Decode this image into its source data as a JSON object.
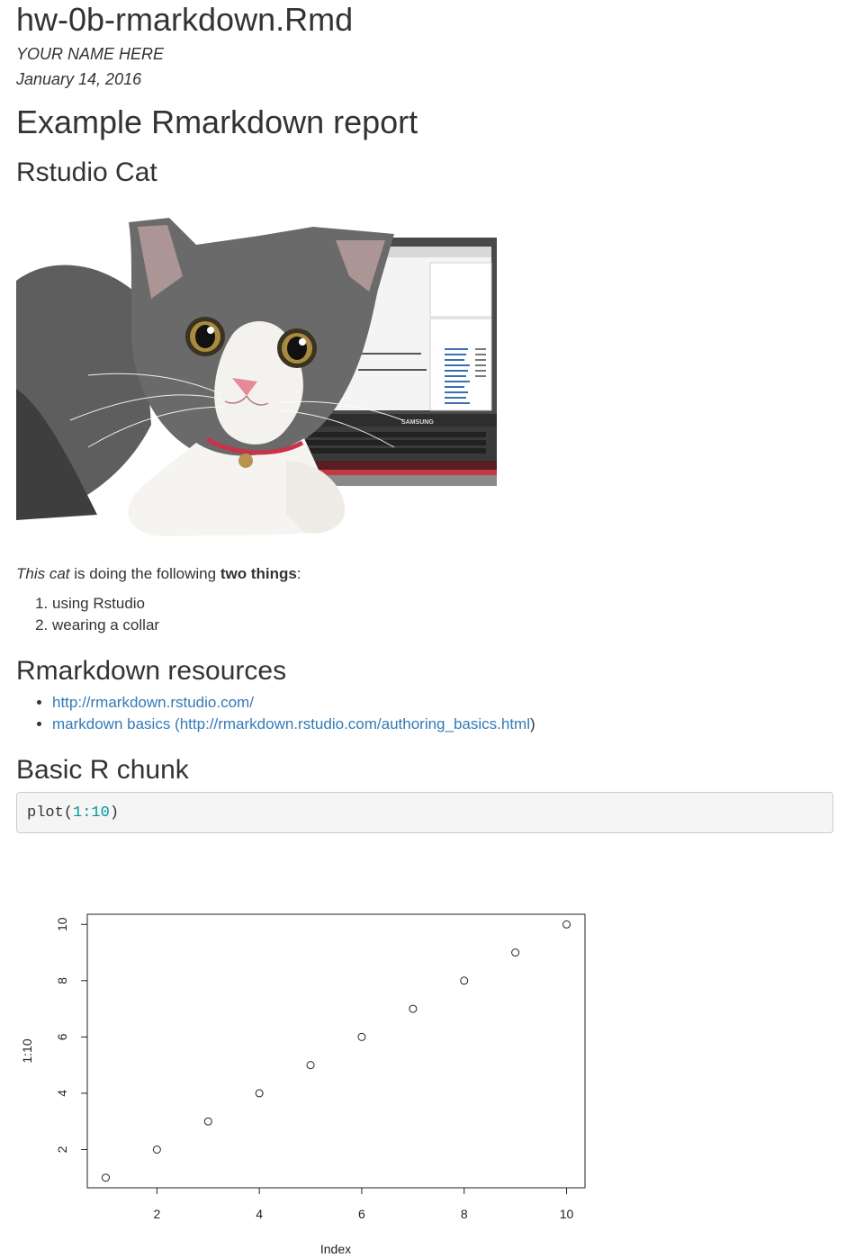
{
  "header": {
    "title": "hw-0b-rmarkdown.Rmd",
    "author": "YOUR NAME HERE",
    "date": "January 14, 2016"
  },
  "sections": {
    "main_heading": "Example Rmarkdown report",
    "cat_heading": "Rstudio Cat",
    "resources_heading": "Rmarkdown resources",
    "chunk_heading": "Basic R chunk"
  },
  "figure": {
    "screen_brand": "SAMSUNG"
  },
  "paragraph": {
    "italic": "This cat",
    "middle": " is doing the following ",
    "bold": "two things",
    "end": ":"
  },
  "things": [
    "using Rstudio",
    "wearing a collar"
  ],
  "resources": {
    "link1": "http://rmarkdown.rstudio.com/",
    "link2": "markdown basics (http://rmarkdown.rstudio.com/authoring_basics.html",
    "link2_suffix": ")"
  },
  "code": {
    "fn": "plot(",
    "arg": "1:10",
    "close": ")"
  },
  "chart_data": {
    "type": "scatter",
    "x": [
      1,
      2,
      3,
      4,
      5,
      6,
      7,
      8,
      9,
      10
    ],
    "y": [
      1,
      2,
      3,
      4,
      5,
      6,
      7,
      8,
      9,
      10
    ],
    "xlabel": "Index",
    "ylabel": "1:10",
    "xticks": [
      2,
      4,
      6,
      8,
      10
    ],
    "yticks": [
      2,
      4,
      6,
      8,
      10
    ],
    "xlim": [
      0.64,
      10.36
    ],
    "ylim": [
      0.64,
      10.36
    ],
    "grid": false,
    "marker": "open-circle"
  }
}
